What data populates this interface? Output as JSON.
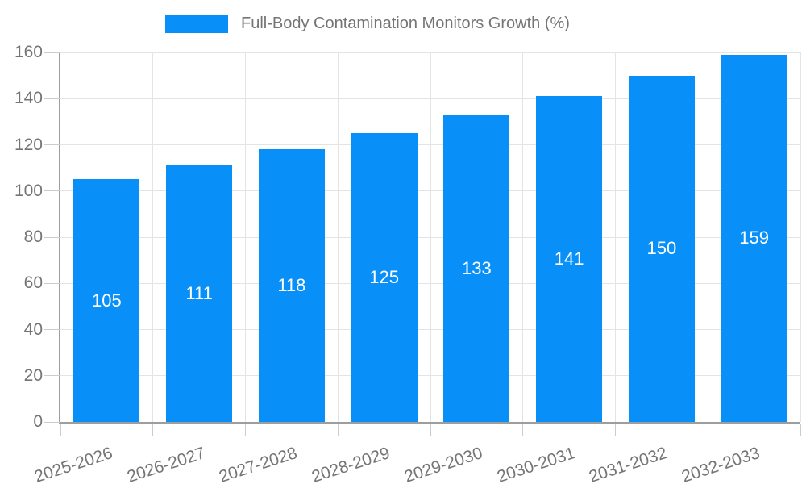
{
  "chart_data": {
    "type": "bar",
    "title": "Full-Body Contamination Monitors Growth (%)",
    "categories": [
      "2025-2026",
      "2026-2027",
      "2027-2028",
      "2028-2029",
      "2029-2030",
      "2030-2031",
      "2031-2032",
      "2032-2033"
    ],
    "values": [
      105,
      111,
      118,
      125,
      133,
      141,
      150,
      159
    ],
    "xlabel": "",
    "ylabel": "",
    "ylim": [
      0,
      160
    ],
    "ytick_step": 20,
    "ytick_labels": [
      "0",
      "20",
      "40",
      "60",
      "80",
      "100",
      "120",
      "140",
      "160"
    ],
    "grid": true,
    "legend_position": "top-center",
    "legend_entries": [
      "Full-Body Contamination Monitors Growth (%)"
    ],
    "bar_labels_inside": true,
    "colors": {
      "bar": "#0990f8",
      "bar_label": "#ffffff",
      "axis": "#9e9e9e",
      "gridline": "#e4e4e4",
      "tick_mark": "#cccccc",
      "text": "#757575",
      "background": "#ffffff"
    }
  }
}
